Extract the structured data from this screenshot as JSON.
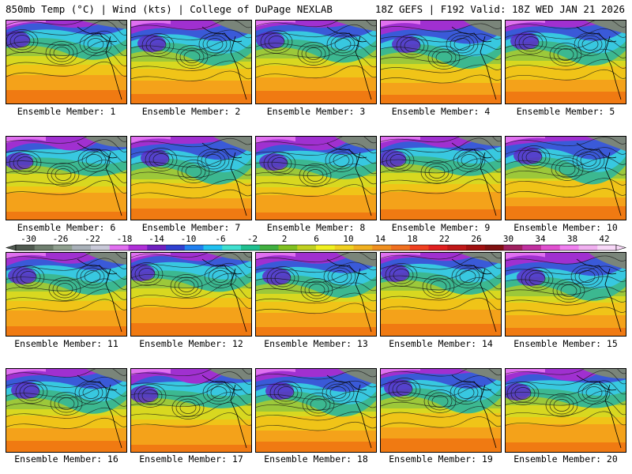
{
  "header": {
    "left": "850mb Temp (°C) | Wind (kts) | College of DuPage NEXLAB",
    "right": "18Z GEFS | F192 Valid: 18Z WED JAN 21 2026"
  },
  "members": [
    {
      "label": "Ensemble Member: 1"
    },
    {
      "label": "Ensemble Member: 2"
    },
    {
      "label": "Ensemble Member: 3"
    },
    {
      "label": "Ensemble Member: 4"
    },
    {
      "label": "Ensemble Member: 5"
    },
    {
      "label": "Ensemble Member: 6"
    },
    {
      "label": "Ensemble Member: 7"
    },
    {
      "label": "Ensemble Member: 8"
    },
    {
      "label": "Ensemble Member: 9"
    },
    {
      "label": "Ensemble Member: 10"
    },
    {
      "label": "Ensemble Member: 11"
    },
    {
      "label": "Ensemble Member: 12"
    },
    {
      "label": "Ensemble Member: 13"
    },
    {
      "label": "Ensemble Member: 14"
    },
    {
      "label": "Ensemble Member: 15"
    },
    {
      "label": "Ensemble Member: 16"
    },
    {
      "label": "Ensemble Member: 17"
    },
    {
      "label": "Ensemble Member: 18"
    },
    {
      "label": "Ensemble Member: 19"
    },
    {
      "label": "Ensemble Member: 20"
    }
  ],
  "colorbar": {
    "labels": [
      "-30",
      "-26",
      "-22",
      "-18",
      "-14",
      "-10",
      "-6",
      "-2",
      "2",
      "6",
      "10",
      "14",
      "18",
      "22",
      "26",
      "30",
      "34",
      "38",
      "42"
    ],
    "colors": [
      "#505a50",
      "#6f7f6f",
      "#8f9f8f",
      "#a8b0b8",
      "#c8c8d8",
      "#e070f0",
      "#b030d8",
      "#7020c0",
      "#3040d0",
      "#2080f0",
      "#20c0f0",
      "#40e0d0",
      "#20c090",
      "#40b040",
      "#80c020",
      "#c0d020",
      "#f0f020",
      "#f0d020",
      "#f0b020",
      "#f09020",
      "#f07020",
      "#f04020",
      "#e02020",
      "#c01818",
      "#a01010",
      "#801010",
      "#a02060",
      "#c030a0",
      "#e050d0",
      "#f080f0",
      "#f0b0f0",
      "#f8d8f8"
    ]
  }
}
